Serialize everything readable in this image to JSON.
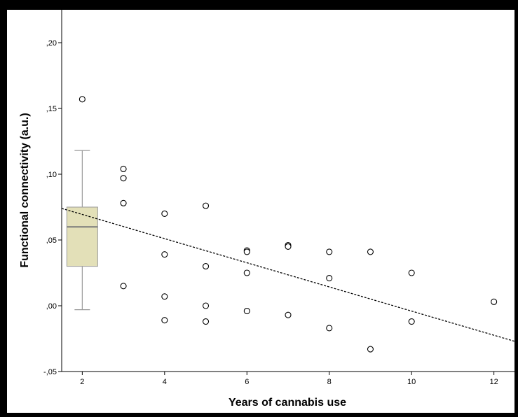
{
  "chart_data": {
    "type": "scatter",
    "title": "",
    "xlabel": "Years of cannabis use",
    "ylabel": "Functional connectivity (a.u.)",
    "xlim": [
      1.5,
      12.5
    ],
    "ylim": [
      -0.05,
      0.225
    ],
    "x_ticks": [
      2,
      4,
      6,
      8,
      10,
      12
    ],
    "x_tick_labels": [
      "2",
      "4",
      "6",
      "8",
      "10",
      "12"
    ],
    "y_ticks": [
      -0.05,
      0.0,
      0.05,
      0.1,
      0.15,
      0.2
    ],
    "y_tick_labels": [
      "-,05",
      ",00",
      ",05",
      ",10",
      ",15",
      ",20"
    ],
    "grid": false,
    "points": [
      {
        "x": 2,
        "y": 0.157
      },
      {
        "x": 3,
        "y": 0.104
      },
      {
        "x": 3,
        "y": 0.097
      },
      {
        "x": 3,
        "y": 0.078
      },
      {
        "x": 3,
        "y": 0.015
      },
      {
        "x": 4,
        "y": 0.07
      },
      {
        "x": 4,
        "y": 0.039
      },
      {
        "x": 4,
        "y": 0.007
      },
      {
        "x": 4,
        "y": -0.011
      },
      {
        "x": 5,
        "y": 0.076
      },
      {
        "x": 5,
        "y": 0.03
      },
      {
        "x": 5,
        "y": 0.0
      },
      {
        "x": 5,
        "y": -0.012
      },
      {
        "x": 6,
        "y": 0.042
      },
      {
        "x": 6,
        "y": 0.041
      },
      {
        "x": 6,
        "y": 0.025
      },
      {
        "x": 6,
        "y": -0.004
      },
      {
        "x": 7,
        "y": 0.046
      },
      {
        "x": 7,
        "y": 0.045
      },
      {
        "x": 7,
        "y": -0.007
      },
      {
        "x": 8,
        "y": 0.041
      },
      {
        "x": 8,
        "y": 0.021
      },
      {
        "x": 8,
        "y": -0.017
      },
      {
        "x": 9,
        "y": 0.041
      },
      {
        "x": 9,
        "y": -0.033
      },
      {
        "x": 10,
        "y": 0.025
      },
      {
        "x": 10,
        "y": -0.012
      },
      {
        "x": 12,
        "y": 0.003
      }
    ],
    "boxplot": {
      "x": 2,
      "whisker_low": -0.003,
      "q1": 0.03,
      "median": 0.06,
      "q3": 0.075,
      "whisker_high": 0.118
    },
    "fit_line": {
      "x": [
        1.5,
        12.5
      ],
      "y": [
        0.074,
        -0.027
      ],
      "style": "dotted"
    },
    "colors": {
      "background": "#000000",
      "plot_area": "#ffffff",
      "box_fill": "#e3e0b8",
      "box_stroke": "#9a9a9a",
      "median": "#7a7a7a",
      "markers": "#000000",
      "text": "#000000"
    }
  }
}
